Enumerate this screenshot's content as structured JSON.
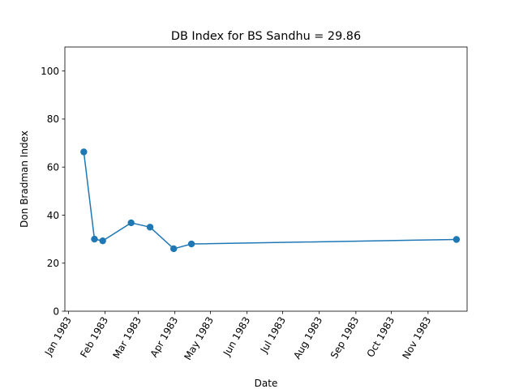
{
  "chart_data": {
    "type": "line",
    "title": "DB Index for BS Sandhu = 29.86",
    "xlabel": "Date",
    "ylabel": "Don Bradman Index",
    "ylim": [
      0,
      110
    ],
    "xlim": [
      "1982-12-29",
      "1983-12-04"
    ],
    "yticks": [
      0,
      20,
      40,
      60,
      80,
      100
    ],
    "xticks": [
      {
        "date": "1983-01-01",
        "label": "Jan 1983"
      },
      {
        "date": "1983-02-01",
        "label": "Feb 1983"
      },
      {
        "date": "1983-03-01",
        "label": "Mar 1983"
      },
      {
        "date": "1983-04-01",
        "label": "Apr 1983"
      },
      {
        "date": "1983-05-01",
        "label": "May 1983"
      },
      {
        "date": "1983-06-01",
        "label": "Jun 1983"
      },
      {
        "date": "1983-07-01",
        "label": "Jul 1983"
      },
      {
        "date": "1983-08-01",
        "label": "Aug 1983"
      },
      {
        "date": "1983-09-01",
        "label": "Sep 1983"
      },
      {
        "date": "1983-10-01",
        "label": "Oct 1983"
      },
      {
        "date": "1983-11-01",
        "label": "Nov 1983"
      }
    ],
    "series": [
      {
        "color": "#1f77b4",
        "marker": "circle",
        "x": [
          "1983-01-14",
          "1983-01-23",
          "1983-01-30",
          "1983-02-23",
          "1983-03-11",
          "1983-03-31",
          "1983-04-15",
          "1983-11-25"
        ],
        "values": [
          66.3,
          30.0,
          29.3,
          36.8,
          35.0,
          26.0,
          28.0,
          29.86
        ]
      }
    ],
    "grid": false
  }
}
